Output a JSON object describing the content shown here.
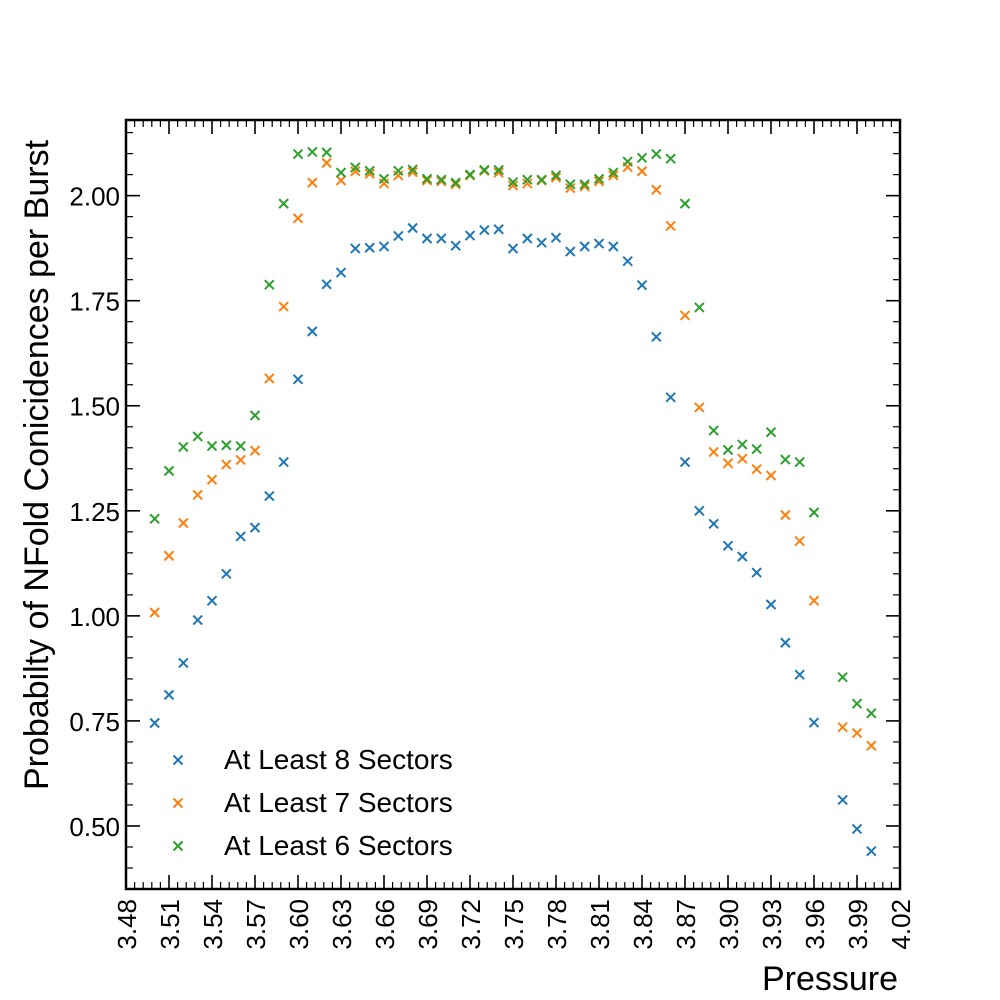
{
  "chart_data": {
    "type": "scatter",
    "xlabel": "Pressure",
    "ylabel": "Probabilty of NFold Conicidences per Burst",
    "xlim": [
      3.48,
      4.02
    ],
    "ylim": [
      0.35,
      2.18
    ],
    "x_ticks": [
      3.48,
      3.51,
      3.54,
      3.57,
      3.6,
      3.63,
      3.66,
      3.69,
      3.72,
      3.75,
      3.78,
      3.81,
      3.84,
      3.87,
      3.9,
      3.93,
      3.96,
      3.99,
      4.02
    ],
    "x_tick_labels": [
      "3.48",
      "3.51",
      "3.54",
      "3.57",
      "3.60",
      "3.63",
      "3.66",
      "3.69",
      "3.72",
      "3.75",
      "3.78",
      "3.81",
      "3.84",
      "3.87",
      "3.90",
      "3.93",
      "3.96",
      "3.99",
      "4.02"
    ],
    "y_ticks": [
      0.5,
      0.75,
      1.0,
      1.25,
      1.5,
      1.75,
      2.0
    ],
    "y_tick_labels": [
      "0.50",
      "0.75",
      "1.00",
      "1.25",
      "1.50",
      "1.75",
      "2.00"
    ],
    "marker": "x",
    "grid": false,
    "legend_position": "bottom-left",
    "series": [
      {
        "name": "At Least 8 Sectors",
        "color": "#1f77b4",
        "points": [
          [
            3.5,
            0.745
          ],
          [
            3.51,
            0.812
          ],
          [
            3.52,
            0.888
          ],
          [
            3.53,
            0.99
          ],
          [
            3.54,
            1.036
          ],
          [
            3.55,
            1.1
          ],
          [
            3.56,
            1.189
          ],
          [
            3.57,
            1.21
          ],
          [
            3.58,
            1.285
          ],
          [
            3.59,
            1.366
          ],
          [
            3.6,
            1.563
          ],
          [
            3.61,
            1.677
          ],
          [
            3.62,
            1.789
          ],
          [
            3.63,
            1.817
          ],
          [
            3.64,
            1.874
          ],
          [
            3.65,
            1.876
          ],
          [
            3.66,
            1.879
          ],
          [
            3.67,
            1.904
          ],
          [
            3.68,
            1.923
          ],
          [
            3.69,
            1.898
          ],
          [
            3.7,
            1.898
          ],
          [
            3.71,
            1.881
          ],
          [
            3.72,
            1.905
          ],
          [
            3.73,
            1.918
          ],
          [
            3.74,
            1.92
          ],
          [
            3.75,
            1.874
          ],
          [
            3.76,
            1.898
          ],
          [
            3.77,
            1.888
          ],
          [
            3.78,
            1.9
          ],
          [
            3.79,
            1.867
          ],
          [
            3.8,
            1.879
          ],
          [
            3.81,
            1.886
          ],
          [
            3.82,
            1.879
          ],
          [
            3.83,
            1.844
          ],
          [
            3.84,
            1.787
          ],
          [
            3.85,
            1.664
          ],
          [
            3.86,
            1.52
          ],
          [
            3.87,
            1.366
          ],
          [
            3.88,
            1.25
          ],
          [
            3.89,
            1.219
          ],
          [
            3.9,
            1.167
          ],
          [
            3.91,
            1.141
          ],
          [
            3.92,
            1.103
          ],
          [
            3.93,
            1.027
          ],
          [
            3.94,
            0.936
          ],
          [
            3.95,
            0.86
          ],
          [
            3.96,
            0.746
          ],
          [
            3.98,
            0.562
          ],
          [
            3.99,
            0.493
          ],
          [
            4.0,
            0.44
          ]
        ]
      },
      {
        "name": "At Least 7 Sectors",
        "color": "#ff7f0e",
        "points": [
          [
            3.5,
            1.008
          ],
          [
            3.51,
            1.143
          ],
          [
            3.52,
            1.221
          ],
          [
            3.53,
            1.288
          ],
          [
            3.54,
            1.324
          ],
          [
            3.55,
            1.36
          ],
          [
            3.56,
            1.371
          ],
          [
            3.57,
            1.393
          ],
          [
            3.58,
            1.565
          ],
          [
            3.59,
            1.736
          ],
          [
            3.6,
            1.946
          ],
          [
            3.61,
            2.031
          ],
          [
            3.62,
            2.078
          ],
          [
            3.63,
            2.036
          ],
          [
            3.64,
            2.058
          ],
          [
            3.65,
            2.052
          ],
          [
            3.66,
            2.029
          ],
          [
            3.67,
            2.048
          ],
          [
            3.68,
            2.056
          ],
          [
            3.69,
            2.036
          ],
          [
            3.7,
            2.034
          ],
          [
            3.71,
            2.027
          ],
          [
            3.72,
            2.048
          ],
          [
            3.73,
            2.059
          ],
          [
            3.74,
            2.055
          ],
          [
            3.75,
            2.024
          ],
          [
            3.76,
            2.029
          ],
          [
            3.77,
            2.036
          ],
          [
            3.78,
            2.043
          ],
          [
            3.79,
            2.018
          ],
          [
            3.8,
            2.022
          ],
          [
            3.81,
            2.034
          ],
          [
            3.82,
            2.048
          ],
          [
            3.83,
            2.068
          ],
          [
            3.84,
            2.058
          ],
          [
            3.85,
            2.014
          ],
          [
            3.86,
            1.928
          ],
          [
            3.87,
            1.715
          ],
          [
            3.88,
            1.496
          ],
          [
            3.89,
            1.39
          ],
          [
            3.9,
            1.363
          ],
          [
            3.91,
            1.374
          ],
          [
            3.92,
            1.349
          ],
          [
            3.93,
            1.334
          ],
          [
            3.94,
            1.24
          ],
          [
            3.95,
            1.178
          ],
          [
            3.96,
            1.036
          ],
          [
            3.98,
            0.735
          ],
          [
            3.99,
            0.721
          ],
          [
            4.0,
            0.691
          ]
        ]
      },
      {
        "name": "At Least 6 Sectors",
        "color": "#2ca02c",
        "points": [
          [
            3.5,
            1.231
          ],
          [
            3.51,
            1.345
          ],
          [
            3.52,
            1.402
          ],
          [
            3.53,
            1.427
          ],
          [
            3.54,
            1.404
          ],
          [
            3.55,
            1.406
          ],
          [
            3.56,
            1.404
          ],
          [
            3.57,
            1.477
          ],
          [
            3.58,
            1.788
          ],
          [
            3.59,
            1.981
          ],
          [
            3.6,
            2.099
          ],
          [
            3.61,
            2.104
          ],
          [
            3.62,
            2.103
          ],
          [
            3.63,
            2.055
          ],
          [
            3.64,
            2.067
          ],
          [
            3.65,
            2.059
          ],
          [
            3.66,
            2.04
          ],
          [
            3.67,
            2.059
          ],
          [
            3.68,
            2.062
          ],
          [
            3.69,
            2.04
          ],
          [
            3.7,
            2.038
          ],
          [
            3.71,
            2.031
          ],
          [
            3.72,
            2.05
          ],
          [
            3.73,
            2.061
          ],
          [
            3.74,
            2.061
          ],
          [
            3.75,
            2.032
          ],
          [
            3.76,
            2.038
          ],
          [
            3.77,
            2.038
          ],
          [
            3.78,
            2.048
          ],
          [
            3.79,
            2.027
          ],
          [
            3.8,
            2.027
          ],
          [
            3.81,
            2.04
          ],
          [
            3.82,
            2.055
          ],
          [
            3.83,
            2.081
          ],
          [
            3.84,
            2.09
          ],
          [
            3.85,
            2.099
          ],
          [
            3.86,
            2.088
          ],
          [
            3.87,
            1.981
          ],
          [
            3.88,
            1.734
          ],
          [
            3.89,
            1.441
          ],
          [
            3.9,
            1.395
          ],
          [
            3.91,
            1.408
          ],
          [
            3.92,
            1.397
          ],
          [
            3.93,
            1.437
          ],
          [
            3.94,
            1.372
          ],
          [
            3.95,
            1.366
          ],
          [
            3.96,
            1.246
          ],
          [
            3.98,
            0.854
          ],
          [
            3.99,
            0.791
          ],
          [
            4.0,
            0.768
          ]
        ]
      }
    ]
  }
}
